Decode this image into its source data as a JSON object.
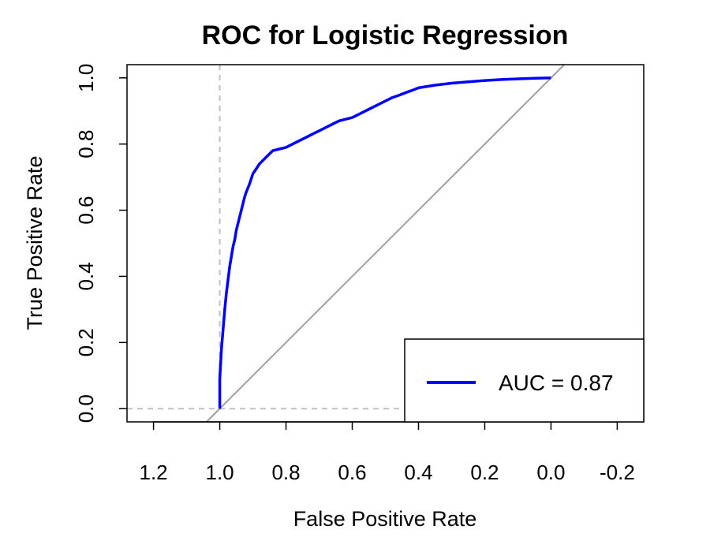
{
  "chart_data": {
    "type": "line",
    "title": "ROC for Logistic Regression",
    "xlabel": "False Positive Rate",
    "ylabel": "True Positive Rate",
    "x_axis": "specificity (reversed)",
    "xlim": [
      1.28,
      -0.28
    ],
    "ylim": [
      -0.04,
      1.04
    ],
    "x_ticks": [
      1.2,
      1.0,
      0.8,
      0.6,
      0.4,
      0.2,
      0.0,
      -0.2
    ],
    "x_tick_labels": [
      "1.2",
      "1.0",
      "0.8",
      "0.6",
      "0.4",
      "0.2",
      "0.0",
      "-0.2"
    ],
    "y_ticks": [
      0.0,
      0.2,
      0.4,
      0.6,
      0.8,
      1.0
    ],
    "y_tick_labels": [
      "0.0",
      "0.2",
      "0.4",
      "0.6",
      "0.8",
      "1.0"
    ],
    "grid": false,
    "legend_position": "bottom-right",
    "series": [
      {
        "name": "AUC = 0.87",
        "color": "#0000FF",
        "x": [
          1.0,
          1.0,
          0.995,
          0.99,
          0.985,
          0.98,
          0.975,
          0.97,
          0.965,
          0.96,
          0.955,
          0.95,
          0.945,
          0.94,
          0.935,
          0.93,
          0.925,
          0.92,
          0.91,
          0.905,
          0.9,
          0.89,
          0.88,
          0.87,
          0.86,
          0.85,
          0.84,
          0.82,
          0.8,
          0.78,
          0.76,
          0.74,
          0.72,
          0.7,
          0.68,
          0.66,
          0.64,
          0.62,
          0.6,
          0.58,
          0.56,
          0.54,
          0.52,
          0.5,
          0.48,
          0.46,
          0.44,
          0.42,
          0.4,
          0.35,
          0.3,
          0.25,
          0.2,
          0.15,
          0.1,
          0.05,
          0.0
        ],
        "y": [
          0.0,
          0.09,
          0.18,
          0.24,
          0.3,
          0.35,
          0.39,
          0.43,
          0.46,
          0.49,
          0.51,
          0.54,
          0.56,
          0.58,
          0.6,
          0.62,
          0.64,
          0.655,
          0.68,
          0.695,
          0.71,
          0.725,
          0.74,
          0.75,
          0.76,
          0.77,
          0.78,
          0.785,
          0.79,
          0.8,
          0.81,
          0.82,
          0.83,
          0.84,
          0.85,
          0.86,
          0.87,
          0.875,
          0.88,
          0.89,
          0.9,
          0.91,
          0.92,
          0.93,
          0.94,
          0.947,
          0.955,
          0.962,
          0.97,
          0.978,
          0.984,
          0.988,
          0.992,
          0.995,
          0.997,
          0.999,
          1.0
        ]
      }
    ],
    "reference_line": {
      "from": [
        1.0,
        0.0
      ],
      "to": [
        0.0,
        1.0
      ],
      "color": "#A0A0A0"
    },
    "threshold_guides": {
      "x": 1.0,
      "y": 0.0,
      "color": "#C0C0C0"
    },
    "legend": {
      "label": "AUC = 0.87",
      "color": "#0000FF"
    }
  }
}
